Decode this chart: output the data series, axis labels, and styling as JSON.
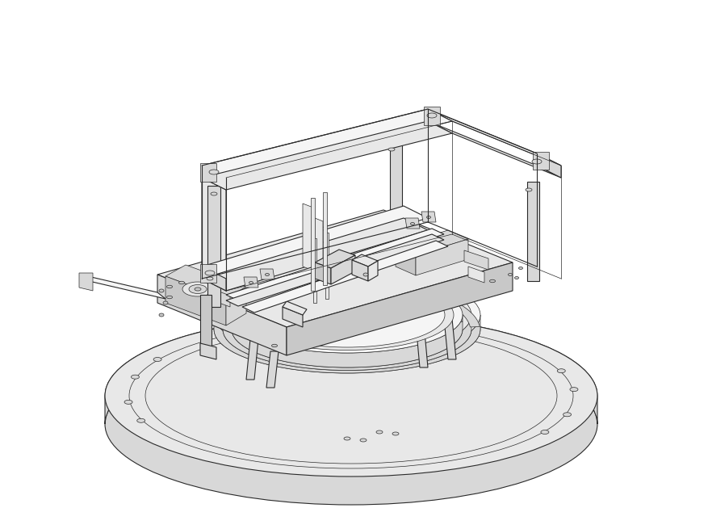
{
  "background_color": "#ffffff",
  "line_color": "#2a2a2a",
  "figsize": [
    8.78,
    6.29
  ],
  "dpi": 100,
  "lw_thin": 0.5,
  "lw_med": 0.8,
  "lw_thick": 1.1,
  "fc_light": "#f5f5f5",
  "fc_mid": "#e8e8e8",
  "fc_dark": "#d8d8d8",
  "fc_darker": "#c8c8c8"
}
